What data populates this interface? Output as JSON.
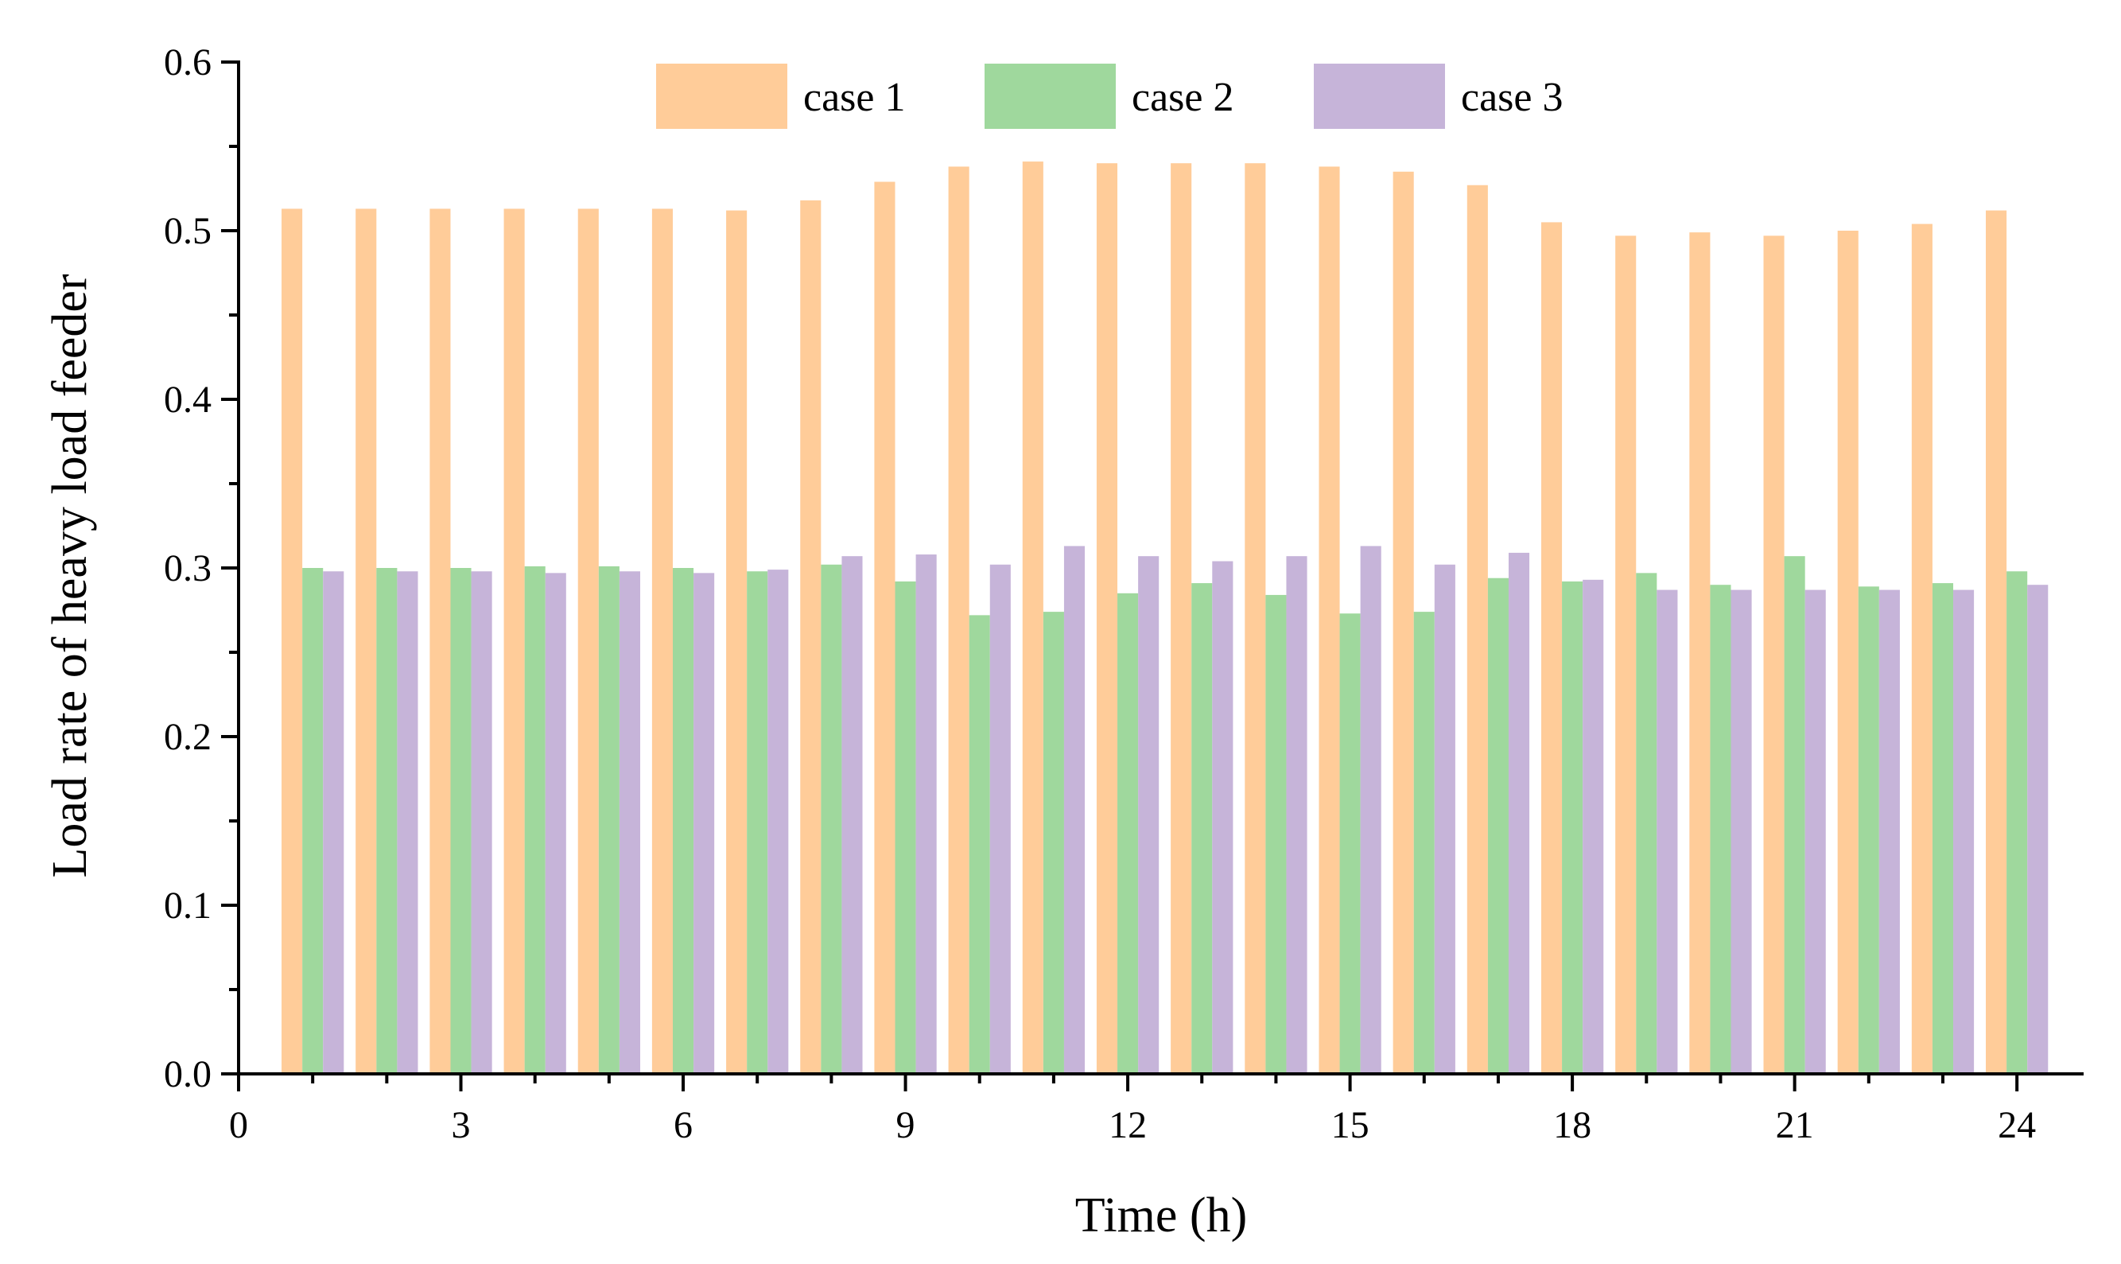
{
  "chart_data": {
    "type": "bar",
    "title": "",
    "xlabel": "Time (h)",
    "ylabel": "Load rate of heavy load feeder",
    "x": [
      1,
      2,
      3,
      4,
      5,
      6,
      7,
      8,
      9,
      10,
      11,
      12,
      13,
      14,
      15,
      16,
      17,
      18,
      19,
      20,
      21,
      22,
      23,
      24
    ],
    "xlim": [
      0,
      24.9
    ],
    "ylim": [
      0,
      0.6
    ],
    "xticks": [
      "0",
      "3",
      "6",
      "9",
      "12",
      "15",
      "18",
      "21",
      "24"
    ],
    "yticks": [
      "0.0",
      "0.1",
      "0.2",
      "0.3",
      "0.4",
      "0.5",
      "0.6"
    ],
    "legend_position": "top",
    "series": [
      {
        "name": "case 1",
        "color": "#FFCC99",
        "values": [
          0.513,
          0.513,
          0.513,
          0.513,
          0.513,
          0.513,
          0.512,
          0.518,
          0.529,
          0.538,
          0.541,
          0.54,
          0.54,
          0.54,
          0.538,
          0.535,
          0.527,
          0.505,
          0.497,
          0.499,
          0.497,
          0.5,
          0.504,
          0.512
        ]
      },
      {
        "name": "case 2",
        "color": "#9FD89D",
        "values": [
          0.3,
          0.3,
          0.3,
          0.301,
          0.301,
          0.3,
          0.298,
          0.302,
          0.292,
          0.272,
          0.274,
          0.285,
          0.291,
          0.284,
          0.273,
          0.274,
          0.294,
          0.292,
          0.297,
          0.29,
          0.307,
          0.289,
          0.291,
          0.298
        ]
      },
      {
        "name": "case 3",
        "color": "#C6B4D9",
        "values": [
          0.298,
          0.298,
          0.298,
          0.297,
          0.298,
          0.297,
          0.299,
          0.307,
          0.308,
          0.302,
          0.313,
          0.307,
          0.304,
          0.307,
          0.313,
          0.302,
          0.309,
          0.293,
          0.287,
          0.287,
          0.287,
          0.287,
          0.287,
          0.29
        ]
      }
    ]
  }
}
